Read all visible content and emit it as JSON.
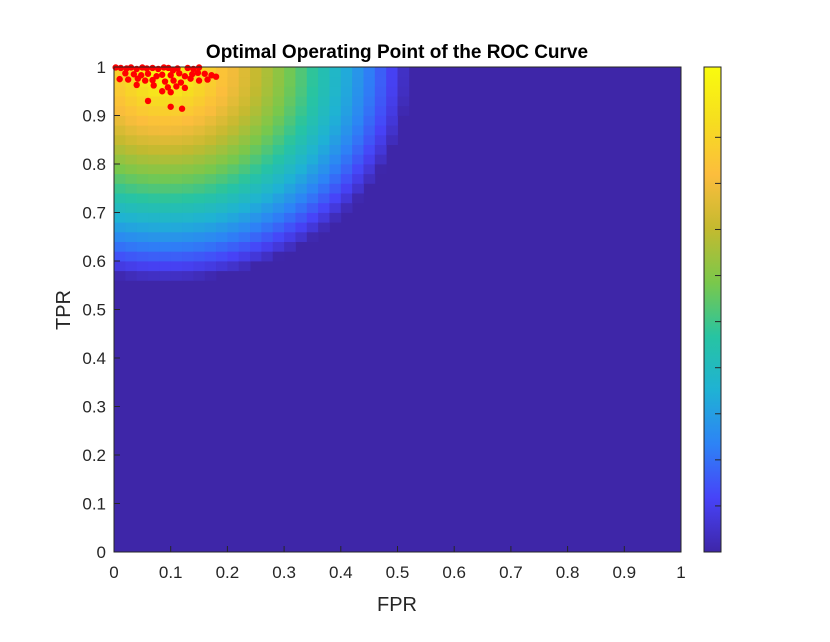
{
  "chart_data": {
    "type": "heatmap",
    "title": "Optimal Operating Point of the ROC Curve",
    "xlabel": "FPR",
    "ylabel": "TPR",
    "xlim": [
      0,
      1
    ],
    "ylim": [
      0,
      1
    ],
    "x_ticks": [
      "0",
      "0.1",
      "0.2",
      "0.3",
      "0.4",
      "0.5",
      "0.6",
      "0.7",
      "0.8",
      "0.9",
      "1"
    ],
    "y_ticks": [
      "0",
      "0.1",
      "0.2",
      "0.3",
      "0.4",
      "0.5",
      "0.6",
      "0.7",
      "0.8",
      "0.9",
      "1"
    ],
    "grid": false,
    "colormap": "parula",
    "colorbar": true,
    "colormap_stops": [
      "#3e26a8",
      "#4743f8",
      "#2d83f6",
      "#1fb2d4",
      "#27c4a2",
      "#7ac84b",
      "#c4ba2f",
      "#fcbd3d",
      "#f6de1f",
      "#f9fb0e"
    ],
    "density_center": {
      "x": 0.09,
      "y": 0.99
    },
    "density_radius": 0.43,
    "density_cell_size": 0.02,
    "points_color": "#ff0000",
    "points": [
      [
        0.003,
        0.999
      ],
      [
        0.012,
        0.998
      ],
      [
        0.022,
        0.997
      ],
      [
        0.03,
        0.999
      ],
      [
        0.04,
        0.996
      ],
      [
        0.05,
        0.999
      ],
      [
        0.058,
        0.997
      ],
      [
        0.068,
        0.998
      ],
      [
        0.078,
        0.996
      ],
      [
        0.088,
        0.999
      ],
      [
        0.096,
        0.998
      ],
      [
        0.104,
        0.993
      ],
      [
        0.112,
        0.997
      ],
      [
        0.13,
        0.998
      ],
      [
        0.14,
        0.996
      ],
      [
        0.15,
        0.999
      ],
      [
        0.02,
        0.987
      ],
      [
        0.035,
        0.985
      ],
      [
        0.048,
        0.983
      ],
      [
        0.06,
        0.986
      ],
      [
        0.075,
        0.981
      ],
      [
        0.085,
        0.984
      ],
      [
        0.1,
        0.983
      ],
      [
        0.115,
        0.987
      ],
      [
        0.125,
        0.981
      ],
      [
        0.138,
        0.985
      ],
      [
        0.148,
        0.988
      ],
      [
        0.16,
        0.986
      ],
      [
        0.172,
        0.983
      ],
      [
        0.18,
        0.98
      ],
      [
        0.01,
        0.975
      ],
      [
        0.025,
        0.974
      ],
      [
        0.042,
        0.976
      ],
      [
        0.055,
        0.972
      ],
      [
        0.068,
        0.973
      ],
      [
        0.09,
        0.97
      ],
      [
        0.105,
        0.972
      ],
      [
        0.118,
        0.968
      ],
      [
        0.135,
        0.976
      ],
      [
        0.15,
        0.972
      ],
      [
        0.165,
        0.974
      ],
      [
        0.04,
        0.963
      ],
      [
        0.07,
        0.962
      ],
      [
        0.095,
        0.958
      ],
      [
        0.11,
        0.96
      ],
      [
        0.125,
        0.957
      ],
      [
        0.085,
        0.95
      ],
      [
        0.1,
        0.948
      ],
      [
        0.06,
        0.93
      ],
      [
        0.1,
        0.918
      ],
      [
        0.12,
        0.914
      ]
    ]
  }
}
